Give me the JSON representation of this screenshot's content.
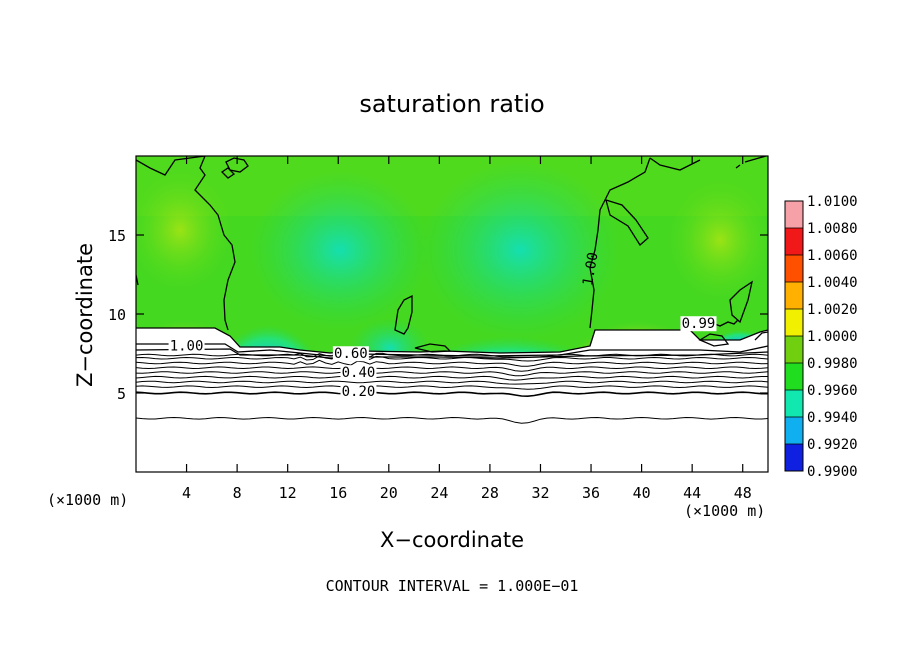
{
  "chart_data": {
    "type": "heatmap",
    "title": "saturation ratio",
    "xlabel": "X−coordinate",
    "ylabel": "Z−coordinate",
    "x_unit": "(×1000 m)",
    "x_unit_right": "(×1000 m)",
    "xlim": [
      0,
      50
    ],
    "ylim": [
      0,
      20
    ],
    "xticks": [
      4,
      8,
      12,
      16,
      20,
      24,
      28,
      32,
      36,
      40,
      44,
      48
    ],
    "yticks": [
      5,
      10,
      15
    ],
    "footer": "CONTOUR INTERVAL = 1.000E−01",
    "colorbar": {
      "levels": [
        "1.0100",
        "1.0080",
        "1.0060",
        "1.0040",
        "1.0020",
        "1.0000",
        "0.9980",
        "0.9960",
        "0.9940",
        "0.9920",
        "0.9900"
      ],
      "colors": [
        "#f6a0a8",
        "#f01818",
        "#ff5000",
        "#ffb000",
        "#f0f000",
        "#70d010",
        "#20dd20",
        "#10e8b0",
        "#10b0f0",
        "#1020e0",
        "#6a10a0"
      ]
    },
    "contour_labels": [
      {
        "text": "1.00",
        "x": 4.0,
        "z": 7.7
      },
      {
        "text": "0.60",
        "x": 17.0,
        "z": 7.2
      },
      {
        "text": "0.40",
        "x": 17.6,
        "z": 6.0
      },
      {
        "text": "0.20",
        "x": 17.6,
        "z": 4.8
      },
      {
        "text": "1.00",
        "x": 36.3,
        "z": 12.8
      },
      {
        "text": "0.99",
        "x": 44.5,
        "z": 9.1
      }
    ],
    "contour_levels_below_cloud": [
      7.4,
      7.2,
      6.9,
      6.6,
      6.3,
      6.0,
      5.7,
      5.4,
      5.0,
      3.4
    ]
  }
}
